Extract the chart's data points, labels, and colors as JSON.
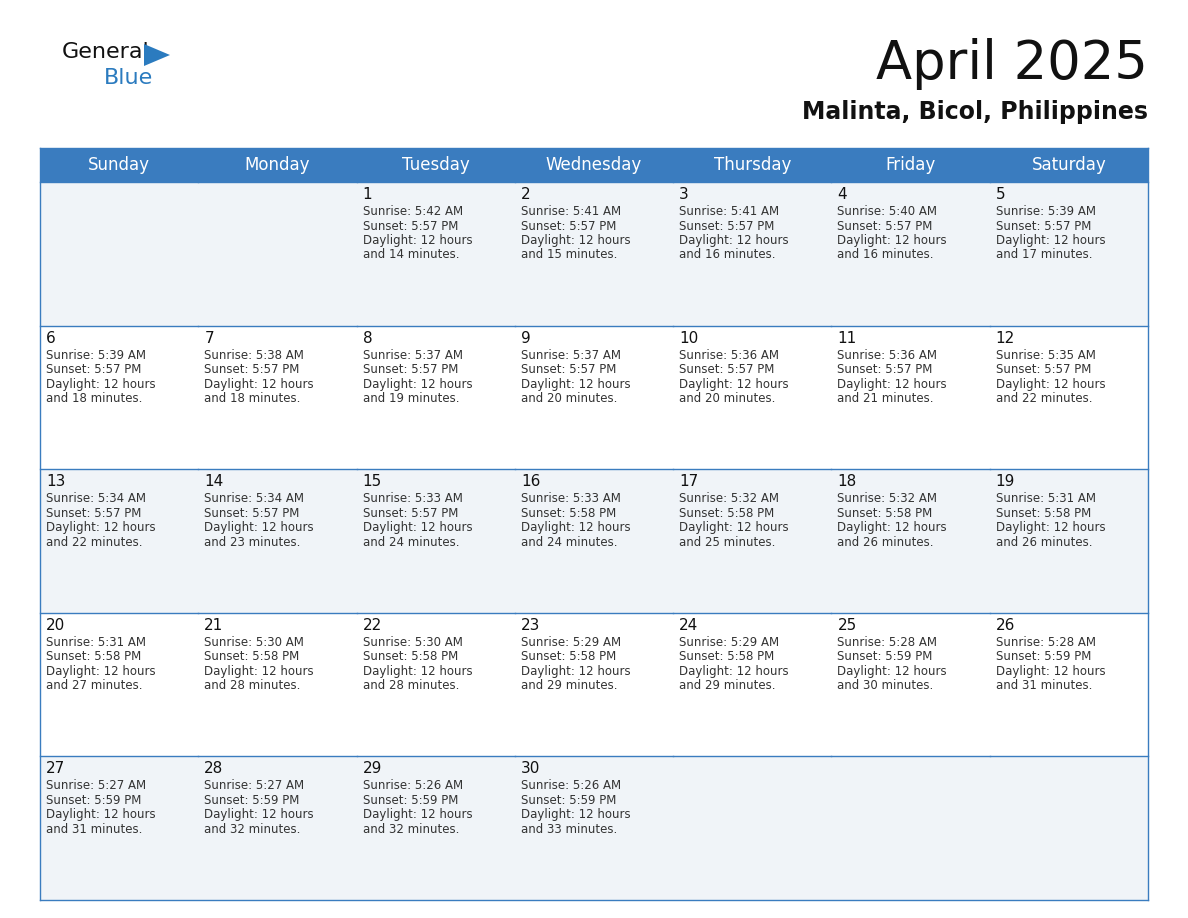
{
  "title": "April 2025",
  "subtitle": "Malinta, Bicol, Philippines",
  "header_bg_color": "#3a7cbf",
  "header_text_color": "#ffffff",
  "cell_bg_odd": "#f0f4f8",
  "cell_bg_even": "#ffffff",
  "border_color": "#3a7cbf",
  "text_color": "#333333",
  "days_of_week": [
    "Sunday",
    "Monday",
    "Tuesday",
    "Wednesday",
    "Thursday",
    "Friday",
    "Saturday"
  ],
  "calendar": [
    [
      {
        "day": "",
        "sunrise": "",
        "sunset": "",
        "daylight_min": ""
      },
      {
        "day": "",
        "sunrise": "",
        "sunset": "",
        "daylight_min": ""
      },
      {
        "day": "1",
        "sunrise": "5:42 AM",
        "sunset": "5:57 PM",
        "daylight_min": "14"
      },
      {
        "day": "2",
        "sunrise": "5:41 AM",
        "sunset": "5:57 PM",
        "daylight_min": "15"
      },
      {
        "day": "3",
        "sunrise": "5:41 AM",
        "sunset": "5:57 PM",
        "daylight_min": "16"
      },
      {
        "day": "4",
        "sunrise": "5:40 AM",
        "sunset": "5:57 PM",
        "daylight_min": "16"
      },
      {
        "day": "5",
        "sunrise": "5:39 AM",
        "sunset": "5:57 PM",
        "daylight_min": "17"
      }
    ],
    [
      {
        "day": "6",
        "sunrise": "5:39 AM",
        "sunset": "5:57 PM",
        "daylight_min": "18"
      },
      {
        "day": "7",
        "sunrise": "5:38 AM",
        "sunset": "5:57 PM",
        "daylight_min": "18"
      },
      {
        "day": "8",
        "sunrise": "5:37 AM",
        "sunset": "5:57 PM",
        "daylight_min": "19"
      },
      {
        "day": "9",
        "sunrise": "5:37 AM",
        "sunset": "5:57 PM",
        "daylight_min": "20"
      },
      {
        "day": "10",
        "sunrise": "5:36 AM",
        "sunset": "5:57 PM",
        "daylight_min": "20"
      },
      {
        "day": "11",
        "sunrise": "5:36 AM",
        "sunset": "5:57 PM",
        "daylight_min": "21"
      },
      {
        "day": "12",
        "sunrise": "5:35 AM",
        "sunset": "5:57 PM",
        "daylight_min": "22"
      }
    ],
    [
      {
        "day": "13",
        "sunrise": "5:34 AM",
        "sunset": "5:57 PM",
        "daylight_min": "22"
      },
      {
        "day": "14",
        "sunrise": "5:34 AM",
        "sunset": "5:57 PM",
        "daylight_min": "23"
      },
      {
        "day": "15",
        "sunrise": "5:33 AM",
        "sunset": "5:57 PM",
        "daylight_min": "24"
      },
      {
        "day": "16",
        "sunrise": "5:33 AM",
        "sunset": "5:58 PM",
        "daylight_min": "24"
      },
      {
        "day": "17",
        "sunrise": "5:32 AM",
        "sunset": "5:58 PM",
        "daylight_min": "25"
      },
      {
        "day": "18",
        "sunrise": "5:32 AM",
        "sunset": "5:58 PM",
        "daylight_min": "26"
      },
      {
        "day": "19",
        "sunrise": "5:31 AM",
        "sunset": "5:58 PM",
        "daylight_min": "26"
      }
    ],
    [
      {
        "day": "20",
        "sunrise": "5:31 AM",
        "sunset": "5:58 PM",
        "daylight_min": "27"
      },
      {
        "day": "21",
        "sunrise": "5:30 AM",
        "sunset": "5:58 PM",
        "daylight_min": "28"
      },
      {
        "day": "22",
        "sunrise": "5:30 AM",
        "sunset": "5:58 PM",
        "daylight_min": "28"
      },
      {
        "day": "23",
        "sunrise": "5:29 AM",
        "sunset": "5:58 PM",
        "daylight_min": "29"
      },
      {
        "day": "24",
        "sunrise": "5:29 AM",
        "sunset": "5:58 PM",
        "daylight_min": "29"
      },
      {
        "day": "25",
        "sunrise": "5:28 AM",
        "sunset": "5:59 PM",
        "daylight_min": "30"
      },
      {
        "day": "26",
        "sunrise": "5:28 AM",
        "sunset": "5:59 PM",
        "daylight_min": "31"
      }
    ],
    [
      {
        "day": "27",
        "sunrise": "5:27 AM",
        "sunset": "5:59 PM",
        "daylight_min": "31"
      },
      {
        "day": "28",
        "sunrise": "5:27 AM",
        "sunset": "5:59 PM",
        "daylight_min": "32"
      },
      {
        "day": "29",
        "sunrise": "5:26 AM",
        "sunset": "5:59 PM",
        "daylight_min": "32"
      },
      {
        "day": "30",
        "sunrise": "5:26 AM",
        "sunset": "5:59 PM",
        "daylight_min": "33"
      },
      {
        "day": "",
        "sunrise": "",
        "sunset": "",
        "daylight_min": ""
      },
      {
        "day": "",
        "sunrise": "",
        "sunset": "",
        "daylight_min": ""
      },
      {
        "day": "",
        "sunrise": "",
        "sunset": "",
        "daylight_min": ""
      }
    ]
  ],
  "title_fontsize": 38,
  "subtitle_fontsize": 17,
  "header_fontsize": 12,
  "day_number_fontsize": 11,
  "cell_text_fontsize": 8.5,
  "figure_bg": "#ffffff",
  "logo_general_color": "#111111",
  "logo_blue_color": "#2b7bbf",
  "logo_triangle_color": "#2b7bbf"
}
